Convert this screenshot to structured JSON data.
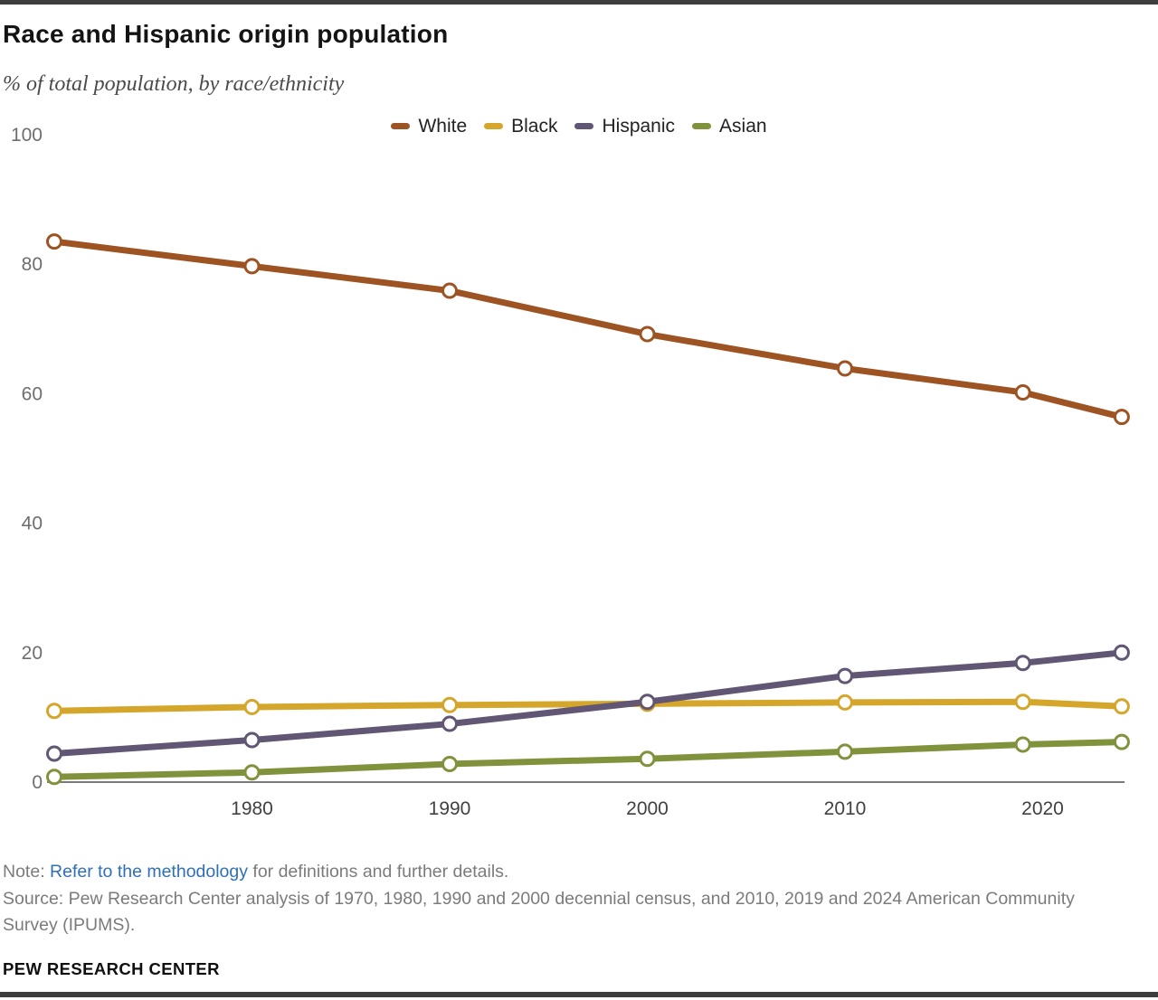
{
  "header": {
    "title": "Race and Hispanic origin population",
    "subtitle": "% of total population, by race/ethnicity"
  },
  "chart_data": {
    "type": "line",
    "x": [
      1970,
      1980,
      1990,
      2000,
      2010,
      2019,
      2024
    ],
    "series": [
      {
        "name": "White",
        "color": "#9d5322",
        "values": [
          83.5,
          79.7,
          75.9,
          69.2,
          63.9,
          60.2,
          56.4
        ]
      },
      {
        "name": "Black",
        "color": "#d4a62b",
        "values": [
          11.0,
          11.6,
          11.9,
          12.1,
          12.3,
          12.4,
          11.7
        ]
      },
      {
        "name": "Hispanic",
        "color": "#615673",
        "values": [
          4.4,
          6.5,
          9.0,
          12.4,
          16.4,
          18.4,
          20.0
        ]
      },
      {
        "name": "Asian",
        "color": "#80923c",
        "values": [
          0.8,
          1.5,
          2.8,
          3.6,
          4.7,
          5.8,
          6.2
        ]
      }
    ],
    "yticks": [
      0,
      20,
      40,
      60,
      80,
      100
    ],
    "xticks": [
      1980,
      1990,
      2000,
      2010,
      2020
    ],
    "ylim": [
      0,
      100
    ],
    "xlim": [
      1970,
      2024
    ],
    "grid": "off",
    "legend_position": "top-center",
    "axis_color": "#7a7a7a"
  },
  "footer": {
    "note_prefix": "Note: ",
    "note_link": "Refer to the methodology",
    "note_suffix": " for definitions and further details.",
    "source": "Source: Pew Research Center analysis of 1970, 1980, 1990 and 2000 decennial census, and 2010, 2019 and 2024 American Community Survey (IPUMS).",
    "brand": "PEW RESEARCH CENTER"
  },
  "colors": {
    "accent_bar": "#3d3d3d",
    "link_blue": "#2f6fb7",
    "tick_gray": "#6e6e6e"
  }
}
